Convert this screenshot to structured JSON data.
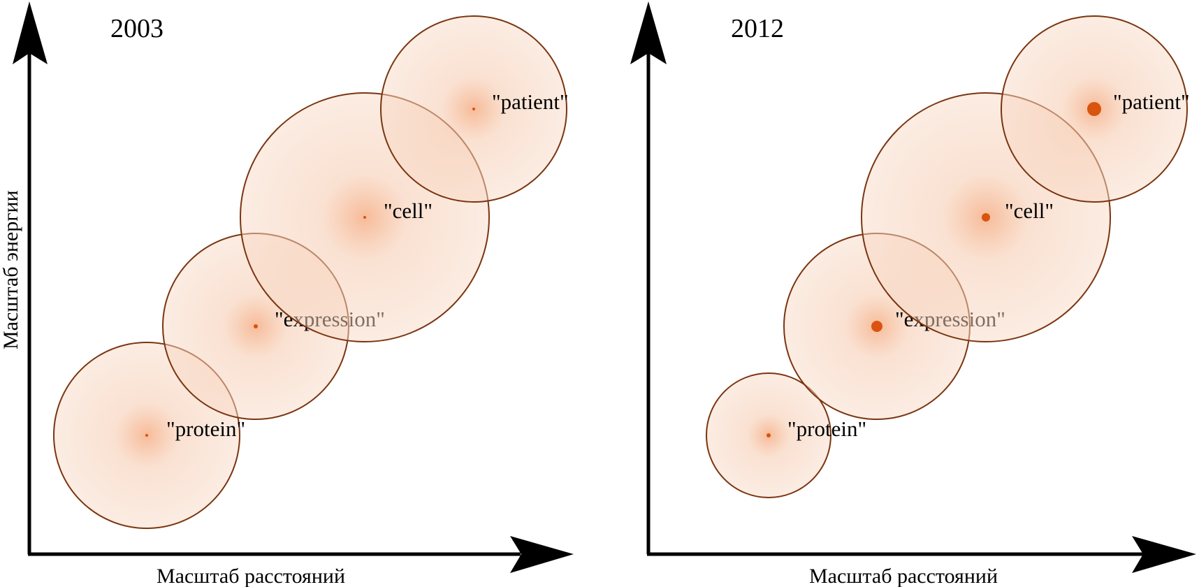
{
  "panels": [
    {
      "title": "2003",
      "xlabel": "Масштаб расстояний",
      "ylabel": "Масштаб энергии",
      "concepts": [
        {
          "label": "\"protein\"",
          "size": 1.0,
          "weight": 0.15
        },
        {
          "label": "\"expression\"",
          "size": 1.0,
          "weight": 0.25
        },
        {
          "label": "\"cell\"",
          "size": 1.33,
          "weight": 0.15
        },
        {
          "label": "\"patient\"",
          "size": 1.0,
          "weight": 0.12
        }
      ]
    },
    {
      "title": "2012",
      "xlabel": "Масштаб расстояний",
      "ylabel": "",
      "concepts": [
        {
          "label": "\"protein\"",
          "size": 0.67,
          "weight": 0.15
        },
        {
          "label": "\"expression\"",
          "size": 1.0,
          "weight": 0.8
        },
        {
          "label": "\"cell\"",
          "size": 1.33,
          "weight": 0.6
        },
        {
          "label": "\"patient\"",
          "size": 1.0,
          "weight": 1.0
        }
      ]
    }
  ],
  "colors": {
    "bubble_fill": "#f6d2bd",
    "bubble_stroke": "#7a3510",
    "center_dot": "#d9540f",
    "axis": "#000000"
  }
}
